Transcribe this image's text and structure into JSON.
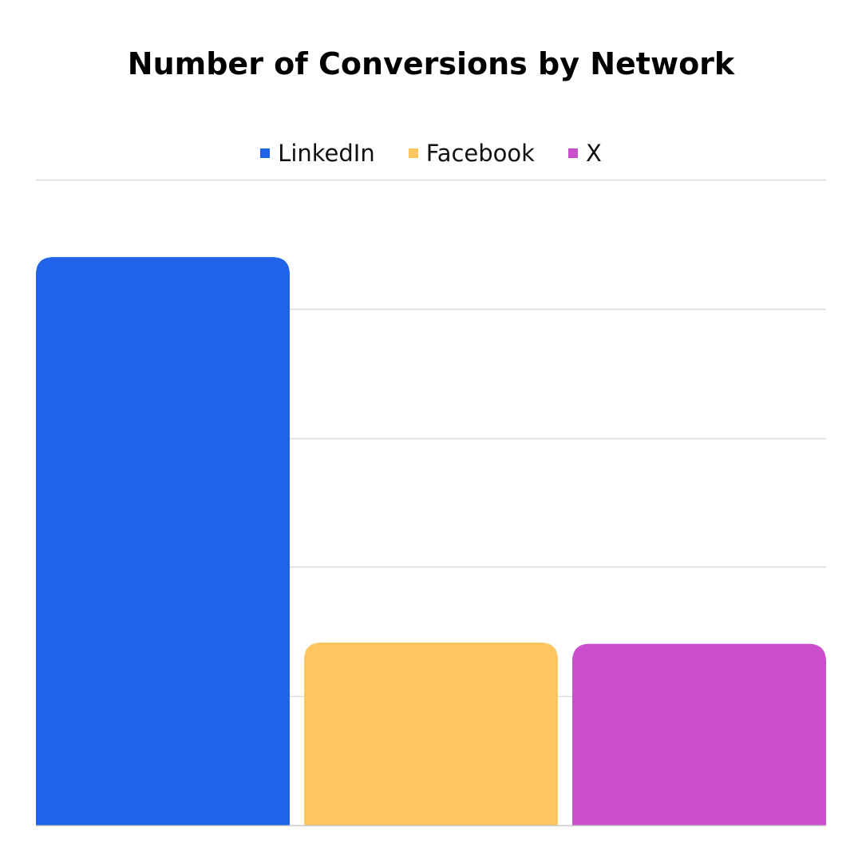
{
  "chart_data": {
    "type": "bar",
    "title": "Number of Conversions by Network",
    "xlabel": "",
    "ylabel": "",
    "categories": [
      "LinkedIn",
      "Facebook",
      "X"
    ],
    "values": [
      88,
      28.3,
      28.1
    ],
    "colors": [
      "#2163e8",
      "#fdc661",
      "#cb4fcd"
    ],
    "ylim": [
      0,
      100
    ],
    "ytick_step": 20,
    "tick_labels_shown": false,
    "grid": true,
    "legend_position": "top-center",
    "bar_corners": "rounded-top"
  }
}
